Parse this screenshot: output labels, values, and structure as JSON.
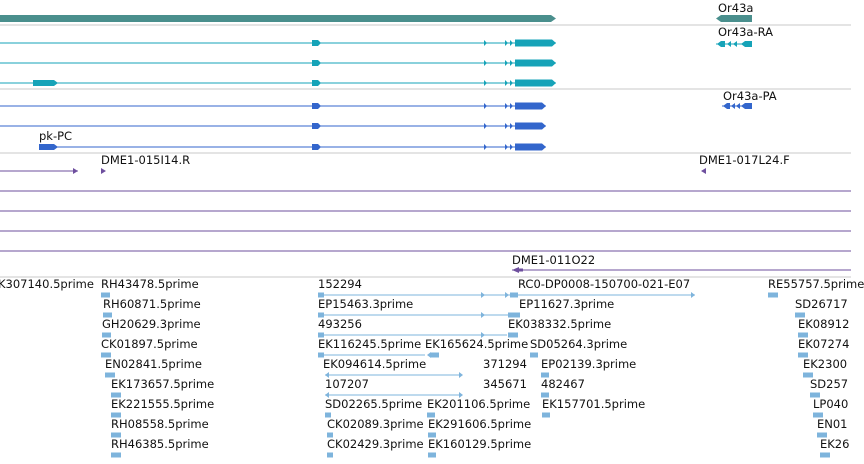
{
  "colors": {
    "gene": "#4a8f8d",
    "transcript": "#16a3b8",
    "protein": "#3366cc",
    "clone": "#6e4f9e",
    "est": "#7eb4dc",
    "separator": "#c8c8c8"
  },
  "gene_track": {
    "gene_label": "Or43a",
    "transcript_label": "Or43a-RA",
    "protein_label": "Or43a-PA",
    "partial_protein_label": "pk-PC"
  },
  "clone_track": {
    "labels": [
      "DME1-015I14.R",
      "DME1-017L24.F",
      "DME1-011O22"
    ]
  },
  "est_track": {
    "labels": [
      "K307140.5prime",
      "RH43478.5prime",
      "152294",
      "RC0-DP0008-150700-021-E07",
      "RE55757.5prime",
      "RH60871.5prime",
      "EP15463.3prime",
      "EP11627.3prime",
      "SD26717",
      "GH20629.3prime",
      "493256",
      "EK038332.5prime",
      "EK08912",
      "CK01897.5prime",
      "EK116245.5prime",
      "EK165624.5prime",
      "SD05264.3prime",
      "EK07274",
      "EN02841.5prime",
      "EK094614.5prime",
      "371294",
      "EP02139.3prime",
      "EK2300",
      "EK173657.5prime",
      "107207",
      "345671",
      "482467",
      "SD257",
      "EK221555.5prime",
      "SD02265.5prime",
      "EK201106.5prime",
      "EK157701.5prime",
      "LP040",
      "RH08558.5prime",
      "CK02089.3prime",
      "EK291606.5prime",
      "EN01",
      "RH46385.5prime",
      "CK02429.3prime",
      "EK160129.5prime",
      "EK26"
    ]
  }
}
